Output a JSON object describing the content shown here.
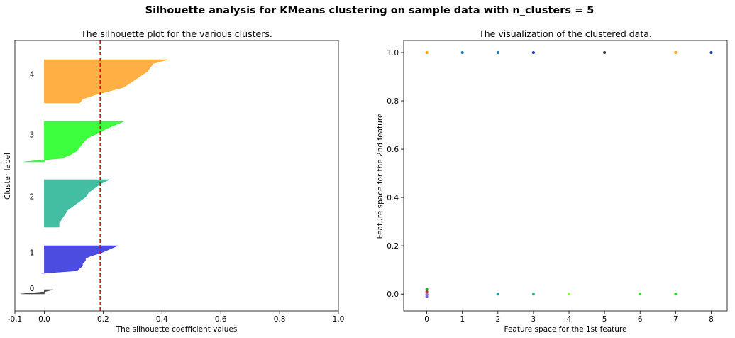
{
  "suptitle": "Silhouette analysis for KMeans clustering on sample data with n_clusters = 5",
  "chart_data": [
    {
      "type": "silhouette",
      "title": "The silhouette plot for the various clusters.",
      "xlabel": "The silhouette coefficient values",
      "ylabel": "Cluster label",
      "xlim": [
        -0.1,
        1.0
      ],
      "xticks": [
        -0.1,
        0.0,
        0.2,
        0.4,
        0.6,
        0.8,
        1.0
      ],
      "xtick_labels": [
        "-0.1",
        "0.0",
        "0.2",
        "0.4",
        "0.6",
        "0.8",
        "1.0"
      ],
      "average_silhouette": 0.19,
      "average_line_color": "#ff0000",
      "clusters": [
        {
          "label": "0",
          "color": "#333333",
          "values_desc": [
            0.03,
            0.0,
            -0.08
          ]
        },
        {
          "label": "1",
          "color": "#3333dd",
          "values_desc": [
            0.25,
            0.23,
            0.21,
            0.19,
            0.16,
            0.14,
            0.14,
            0.13,
            0.13,
            0.12,
            0.11,
            -0.01
          ]
        },
        {
          "label": "2",
          "color": "#2ab595",
          "values_desc": [
            0.22,
            0.19,
            0.17,
            0.15,
            0.14,
            0.12,
            0.1,
            0.08,
            0.07,
            0.06,
            0.05,
            0.05
          ]
        },
        {
          "label": "3",
          "color": "#22ff22",
          "values_desc": [
            0.27,
            0.24,
            0.21,
            0.19,
            0.16,
            0.14,
            0.13,
            0.12,
            0.11,
            0.09,
            0.06,
            -0.07
          ]
        },
        {
          "label": "4",
          "color": "#ffa42a",
          "values_desc": [
            0.42,
            0.37,
            0.36,
            0.35,
            0.33,
            0.31,
            0.29,
            0.27,
            0.22,
            0.17,
            0.13,
            0.12
          ]
        }
      ]
    },
    {
      "type": "scatter",
      "title": "The visualization of the clustered data.",
      "xlabel": "Feature space for the 1st feature",
      "ylabel": "Feature space for the 2nd feature",
      "xlim": [
        -0.65,
        8.45
      ],
      "ylim": [
        -0.07,
        1.05
      ],
      "xticks": [
        0,
        1,
        2,
        3,
        4,
        5,
        6,
        7,
        8
      ],
      "xtick_labels": [
        "0",
        "1",
        "2",
        "3",
        "4",
        "5",
        "6",
        "7",
        "8"
      ],
      "yticks": [
        0.0,
        0.2,
        0.4,
        0.6,
        0.8,
        1.0
      ],
      "ytick_labels": [
        "0.0",
        "0.2",
        "0.4",
        "0.6",
        "0.8",
        "1.0"
      ],
      "points": [
        {
          "x": 0,
          "y": 1,
          "color": "#ffa500"
        },
        {
          "x": 1,
          "y": 1,
          "color": "#1f77b4"
        },
        {
          "x": 2,
          "y": 1,
          "color": "#1f77b4"
        },
        {
          "x": 3,
          "y": 1,
          "color": "#1f3fd0"
        },
        {
          "x": 5,
          "y": 1,
          "color": "#333333"
        },
        {
          "x": 7,
          "y": 1,
          "color": "#ffa500"
        },
        {
          "x": 8,
          "y": 1,
          "color": "#1f3fa0"
        },
        {
          "x": 0,
          "y": 0.02,
          "color": "#2ca02c"
        },
        {
          "x": 0,
          "y": 0.01,
          "color": "#d62728"
        },
        {
          "x": 0,
          "y": 0.0,
          "color": "#9467bd"
        },
        {
          "x": 0,
          "y": -0.01,
          "color": "#7f5fdf"
        },
        {
          "x": 2,
          "y": 0,
          "color": "#17a09b"
        },
        {
          "x": 3,
          "y": 0,
          "color": "#2ab595"
        },
        {
          "x": 4,
          "y": 0,
          "color": "#7fff2f"
        },
        {
          "x": 6,
          "y": 0,
          "color": "#22dd22"
        },
        {
          "x": 7,
          "y": 0,
          "color": "#22dd22"
        }
      ]
    }
  ]
}
